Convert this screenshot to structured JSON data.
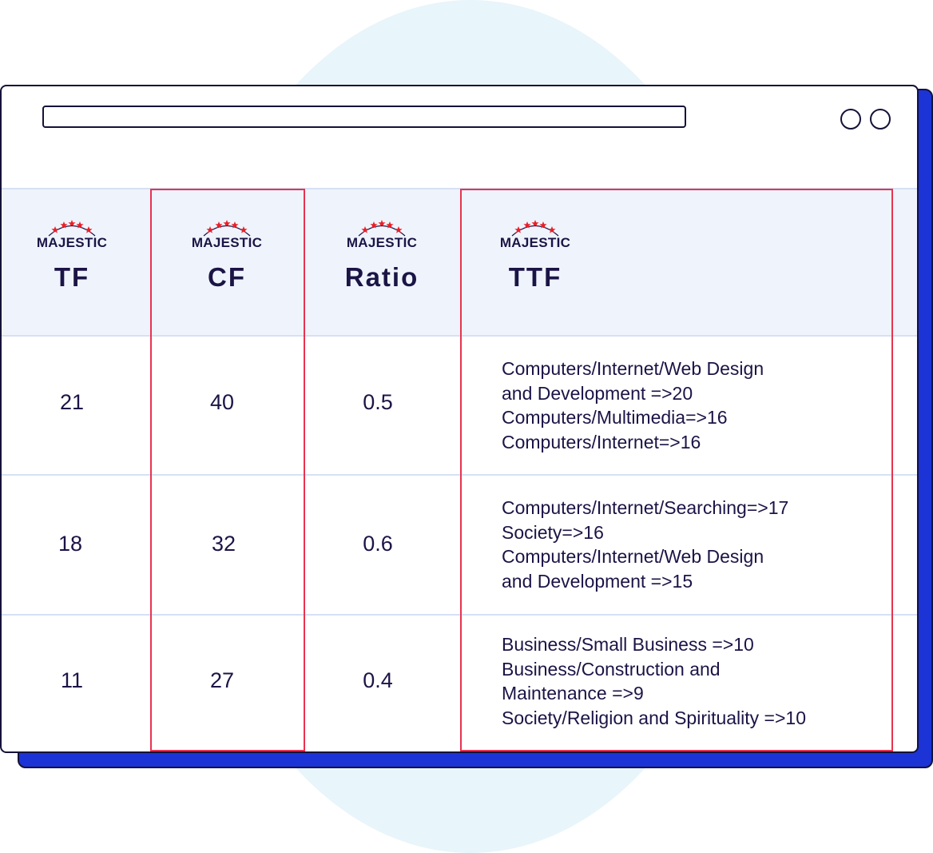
{
  "columns": [
    {
      "brand": "MAJESTIC",
      "title": "TF"
    },
    {
      "brand": "MAJESTIC",
      "title": "CF"
    },
    {
      "brand": "MAJESTIC",
      "title": "Ratio"
    },
    {
      "brand": "MAJESTIC",
      "title": "TTF"
    }
  ],
  "rows": [
    {
      "tf": "21",
      "cf": "40",
      "ratio": "0.5",
      "ttf": [
        "Computers/Internet/Web Design",
        "and Development =>20",
        "Computers/Multimedia=>16",
        "Computers/Internet=>16"
      ]
    },
    {
      "tf": "18",
      "cf": "32",
      "ratio": "0.6",
      "ttf": [
        "Computers/Internet/Searching=>17",
        "Society=>16",
        "Computers/Internet/Web Design",
        "and Development =>15"
      ]
    },
    {
      "tf": "11",
      "cf": "27",
      "ratio": "0.4",
      "ttf": [
        "Business/Small Business =>10",
        "Business/Construction and",
        "Maintenance =>9",
        "Society/Religion and Spirituality =>10"
      ]
    }
  ],
  "colors": {
    "highlight": "#e8334f",
    "window_shadow": "#1c34d6",
    "header_bg": "#eff4fc",
    "background_circle": "#e8f5fa",
    "logo_stars": "#e8202a"
  },
  "icons": [
    "majestic-logo-icon"
  ]
}
